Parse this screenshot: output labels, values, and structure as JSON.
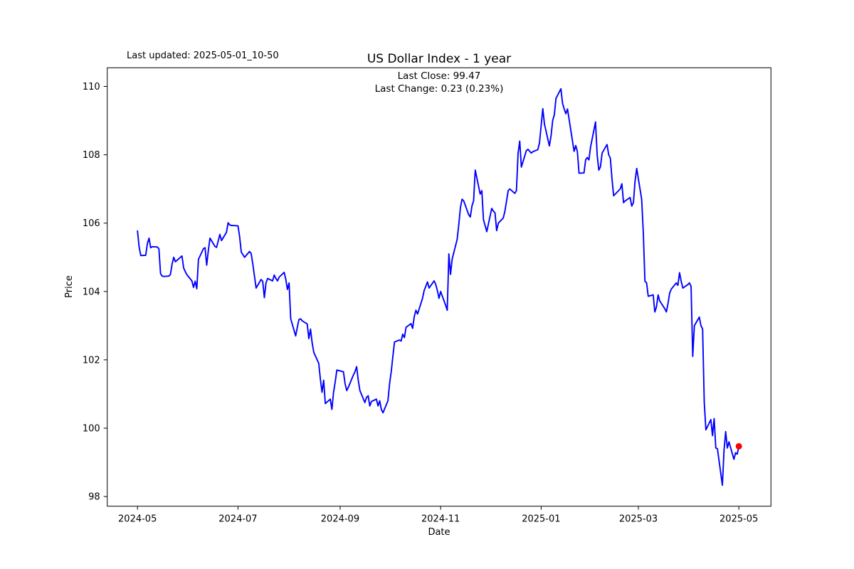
{
  "header": {
    "last_updated": "Last updated: 2025-05-01_10-50"
  },
  "chart_data": {
    "type": "line",
    "title": "US Dollar Index - 1 year",
    "subtitle_line1": "Last Close: 99.47",
    "subtitle_line2": "Last Change: 0.23 (0.23%)",
    "xlabel": "Date",
    "ylabel": "Price",
    "ylim": [
      97.72,
      110.55
    ],
    "x_start_date": "2024-05-01",
    "x_end_date": "2025-05-01",
    "grid": false,
    "legend": "none",
    "line_color": "#0000ff",
    "marker_color": "#ff0000",
    "axis_color": "#000000",
    "background_color": "#ffffff",
    "y_ticks": [
      98,
      100,
      102,
      104,
      106,
      108,
      110
    ],
    "x_ticks": [
      {
        "label": "2024-05",
        "date": "2024-05-01"
      },
      {
        "label": "2024-07",
        "date": "2024-07-01"
      },
      {
        "label": "2024-09",
        "date": "2024-09-01"
      },
      {
        "label": "2024-11",
        "date": "2024-11-01"
      },
      {
        "label": "2025-01",
        "date": "2025-01-01"
      },
      {
        "label": "2025-03",
        "date": "2025-03-01"
      },
      {
        "label": "2025-05",
        "date": "2025-05-01"
      }
    ],
    "last_point": {
      "date": "2025-05-01",
      "price": 99.47
    },
    "series": [
      {
        "name": "US Dollar Index",
        "points": [
          [
            "2024-05-01",
            105.77
          ],
          [
            "2024-05-02",
            105.3
          ],
          [
            "2024-05-03",
            105.05
          ],
          [
            "2024-05-06",
            105.06
          ],
          [
            "2024-05-07",
            105.4
          ],
          [
            "2024-05-08",
            105.56
          ],
          [
            "2024-05-09",
            105.28
          ],
          [
            "2024-05-10",
            105.31
          ],
          [
            "2024-05-13",
            105.3
          ],
          [
            "2024-05-14",
            105.25
          ],
          [
            "2024-05-15",
            104.52
          ],
          [
            "2024-05-16",
            104.45
          ],
          [
            "2024-05-17",
            104.44
          ],
          [
            "2024-05-20",
            104.45
          ],
          [
            "2024-05-21",
            104.5
          ],
          [
            "2024-05-22",
            104.8
          ],
          [
            "2024-05-23",
            105.0
          ],
          [
            "2024-05-24",
            104.87
          ],
          [
            "2024-05-28",
            105.04
          ],
          [
            "2024-05-29",
            104.69
          ],
          [
            "2024-05-30",
            104.58
          ],
          [
            "2024-05-31",
            104.49
          ],
          [
            "2024-06-03",
            104.31
          ],
          [
            "2024-06-04",
            104.12
          ],
          [
            "2024-06-05",
            104.3
          ],
          [
            "2024-06-06",
            104.08
          ],
          [
            "2024-06-07",
            104.94
          ],
          [
            "2024-06-10",
            105.25
          ],
          [
            "2024-06-11",
            105.28
          ],
          [
            "2024-06-12",
            104.77
          ],
          [
            "2024-06-13",
            105.2
          ],
          [
            "2024-06-14",
            105.56
          ],
          [
            "2024-06-17",
            105.32
          ],
          [
            "2024-06-18",
            105.29
          ],
          [
            "2024-06-20",
            105.67
          ],
          [
            "2024-06-21",
            105.49
          ],
          [
            "2024-06-24",
            105.73
          ],
          [
            "2024-06-25",
            106.01
          ],
          [
            "2024-06-26",
            105.95
          ],
          [
            "2024-06-27",
            105.93
          ],
          [
            "2024-06-28",
            105.93
          ],
          [
            "2024-07-01",
            105.92
          ],
          [
            "2024-07-02",
            105.6
          ],
          [
            "2024-07-03",
            105.15
          ],
          [
            "2024-07-05",
            105.0
          ],
          [
            "2024-07-08",
            105.17
          ],
          [
            "2024-07-09",
            105.11
          ],
          [
            "2024-07-10",
            104.8
          ],
          [
            "2024-07-11",
            104.45
          ],
          [
            "2024-07-12",
            104.1
          ],
          [
            "2024-07-15",
            104.35
          ],
          [
            "2024-07-16",
            104.3
          ],
          [
            "2024-07-17",
            103.82
          ],
          [
            "2024-07-18",
            104.25
          ],
          [
            "2024-07-19",
            104.38
          ],
          [
            "2024-07-22",
            104.31
          ],
          [
            "2024-07-23",
            104.48
          ],
          [
            "2024-07-24",
            104.38
          ],
          [
            "2024-07-25",
            104.31
          ],
          [
            "2024-07-26",
            104.42
          ],
          [
            "2024-07-29",
            104.56
          ],
          [
            "2024-07-30",
            104.36
          ],
          [
            "2024-07-31",
            104.06
          ],
          [
            "2024-08-01",
            104.25
          ],
          [
            "2024-08-02",
            103.2
          ],
          [
            "2024-08-05",
            102.7
          ],
          [
            "2024-08-06",
            102.95
          ],
          [
            "2024-08-07",
            103.18
          ],
          [
            "2024-08-08",
            103.2
          ],
          [
            "2024-08-09",
            103.14
          ],
          [
            "2024-08-12",
            103.05
          ],
          [
            "2024-08-13",
            102.62
          ],
          [
            "2024-08-14",
            102.9
          ],
          [
            "2024-08-15",
            102.5
          ],
          [
            "2024-08-16",
            102.22
          ],
          [
            "2024-08-19",
            101.9
          ],
          [
            "2024-08-20",
            101.44
          ],
          [
            "2024-08-21",
            101.05
          ],
          [
            "2024-08-22",
            101.4
          ],
          [
            "2024-08-23",
            100.72
          ],
          [
            "2024-08-26",
            100.85
          ],
          [
            "2024-08-27",
            100.55
          ],
          [
            "2024-08-28",
            101.05
          ],
          [
            "2024-08-29",
            101.35
          ],
          [
            "2024-08-30",
            101.7
          ],
          [
            "2024-09-03",
            101.65
          ],
          [
            "2024-09-04",
            101.3
          ],
          [
            "2024-09-05",
            101.1
          ],
          [
            "2024-09-06",
            101.2
          ],
          [
            "2024-09-09",
            101.55
          ],
          [
            "2024-09-10",
            101.65
          ],
          [
            "2024-09-11",
            101.8
          ],
          [
            "2024-09-12",
            101.4
          ],
          [
            "2024-09-13",
            101.1
          ],
          [
            "2024-09-16",
            100.75
          ],
          [
            "2024-09-17",
            100.9
          ],
          [
            "2024-09-18",
            100.95
          ],
          [
            "2024-09-19",
            100.65
          ],
          [
            "2024-09-20",
            100.78
          ],
          [
            "2024-09-23",
            100.85
          ],
          [
            "2024-09-24",
            100.65
          ],
          [
            "2024-09-25",
            100.8
          ],
          [
            "2024-09-26",
            100.55
          ],
          [
            "2024-09-27",
            100.45
          ],
          [
            "2024-09-30",
            100.8
          ],
          [
            "2024-10-01",
            101.3
          ],
          [
            "2024-10-02",
            101.65
          ],
          [
            "2024-10-03",
            102.1
          ],
          [
            "2024-10-04",
            102.52
          ],
          [
            "2024-10-07",
            102.58
          ],
          [
            "2024-10-08",
            102.55
          ],
          [
            "2024-10-09",
            102.75
          ],
          [
            "2024-10-10",
            102.65
          ],
          [
            "2024-10-11",
            102.95
          ],
          [
            "2024-10-14",
            103.06
          ],
          [
            "2024-10-15",
            102.92
          ],
          [
            "2024-10-16",
            103.27
          ],
          [
            "2024-10-17",
            103.45
          ],
          [
            "2024-10-18",
            103.34
          ],
          [
            "2024-10-21",
            103.8
          ],
          [
            "2024-10-22",
            104.03
          ],
          [
            "2024-10-23",
            104.15
          ],
          [
            "2024-10-24",
            104.28
          ],
          [
            "2024-10-25",
            104.1
          ],
          [
            "2024-10-28",
            104.31
          ],
          [
            "2024-10-29",
            104.21
          ],
          [
            "2024-10-30",
            104.03
          ],
          [
            "2024-10-31",
            103.8
          ],
          [
            "2024-11-01",
            104.0
          ],
          [
            "2024-11-04",
            103.6
          ],
          [
            "2024-11-05",
            103.45
          ],
          [
            "2024-11-06",
            105.1
          ],
          [
            "2024-11-07",
            104.5
          ],
          [
            "2024-11-08",
            104.95
          ],
          [
            "2024-11-11",
            105.52
          ],
          [
            "2024-11-12",
            105.95
          ],
          [
            "2024-11-13",
            106.45
          ],
          [
            "2024-11-14",
            106.7
          ],
          [
            "2024-11-15",
            106.65
          ],
          [
            "2024-11-18",
            106.25
          ],
          [
            "2024-11-19",
            106.18
          ],
          [
            "2024-11-20",
            106.5
          ],
          [
            "2024-11-21",
            106.65
          ],
          [
            "2024-11-22",
            107.55
          ],
          [
            "2024-11-25",
            106.85
          ],
          [
            "2024-11-26",
            106.95
          ],
          [
            "2024-11-27",
            106.1
          ],
          [
            "2024-11-29",
            105.75
          ],
          [
            "2024-12-02",
            106.43
          ],
          [
            "2024-12-03",
            106.35
          ],
          [
            "2024-12-04",
            106.3
          ],
          [
            "2024-12-05",
            105.78
          ],
          [
            "2024-12-06",
            106.0
          ],
          [
            "2024-12-09",
            106.15
          ],
          [
            "2024-12-10",
            106.35
          ],
          [
            "2024-12-11",
            106.65
          ],
          [
            "2024-12-12",
            106.95
          ],
          [
            "2024-12-13",
            107.0
          ],
          [
            "2024-12-16",
            106.87
          ],
          [
            "2024-12-17",
            106.95
          ],
          [
            "2024-12-18",
            108.05
          ],
          [
            "2024-12-19",
            108.4
          ],
          [
            "2024-12-20",
            107.64
          ],
          [
            "2024-12-23",
            108.12
          ],
          [
            "2024-12-24",
            108.16
          ],
          [
            "2024-12-26",
            108.05
          ],
          [
            "2024-12-27",
            108.09
          ],
          [
            "2024-12-30",
            108.15
          ],
          [
            "2024-12-31",
            108.35
          ],
          [
            "2025-01-02",
            109.35
          ],
          [
            "2025-01-03",
            108.9
          ],
          [
            "2025-01-06",
            108.26
          ],
          [
            "2025-01-07",
            108.55
          ],
          [
            "2025-01-08",
            109.0
          ],
          [
            "2025-01-09",
            109.17
          ],
          [
            "2025-01-10",
            109.65
          ],
          [
            "2025-01-13",
            109.93
          ],
          [
            "2025-01-14",
            109.5
          ],
          [
            "2025-01-15",
            109.34
          ],
          [
            "2025-01-16",
            109.2
          ],
          [
            "2025-01-17",
            109.34
          ],
          [
            "2025-01-21",
            108.1
          ],
          [
            "2025-01-22",
            108.27
          ],
          [
            "2025-01-23",
            108.09
          ],
          [
            "2025-01-24",
            107.46
          ],
          [
            "2025-01-27",
            107.47
          ],
          [
            "2025-01-28",
            107.85
          ],
          [
            "2025-01-29",
            107.92
          ],
          [
            "2025-01-30",
            107.85
          ],
          [
            "2025-01-31",
            108.23
          ],
          [
            "2025-02-03",
            108.96
          ],
          [
            "2025-02-04",
            108.0
          ],
          [
            "2025-02-05",
            107.55
          ],
          [
            "2025-02-06",
            107.65
          ],
          [
            "2025-02-07",
            108.05
          ],
          [
            "2025-02-10",
            108.3
          ],
          [
            "2025-02-11",
            108.0
          ],
          [
            "2025-02-12",
            107.9
          ],
          [
            "2025-02-13",
            107.3
          ],
          [
            "2025-02-14",
            106.8
          ],
          [
            "2025-02-18",
            107.0
          ],
          [
            "2025-02-19",
            107.15
          ],
          [
            "2025-02-20",
            106.6
          ],
          [
            "2025-02-21",
            106.65
          ],
          [
            "2025-02-24",
            106.75
          ],
          [
            "2025-02-25",
            106.5
          ],
          [
            "2025-02-26",
            106.6
          ],
          [
            "2025-02-27",
            107.23
          ],
          [
            "2025-02-28",
            107.6
          ],
          [
            "2025-03-03",
            106.7
          ],
          [
            "2025-03-04",
            105.73
          ],
          [
            "2025-03-05",
            104.3
          ],
          [
            "2025-03-06",
            104.25
          ],
          [
            "2025-03-07",
            103.86
          ],
          [
            "2025-03-10",
            103.9
          ],
          [
            "2025-03-11",
            103.4
          ],
          [
            "2025-03-12",
            103.55
          ],
          [
            "2025-03-13",
            103.9
          ],
          [
            "2025-03-14",
            103.72
          ],
          [
            "2025-03-17",
            103.5
          ],
          [
            "2025-03-18",
            103.4
          ],
          [
            "2025-03-19",
            103.65
          ],
          [
            "2025-03-20",
            103.95
          ],
          [
            "2025-03-21",
            104.07
          ],
          [
            "2025-03-24",
            104.25
          ],
          [
            "2025-03-25",
            104.18
          ],
          [
            "2025-03-26",
            104.55
          ],
          [
            "2025-03-27",
            104.3
          ],
          [
            "2025-03-28",
            104.1
          ],
          [
            "2025-03-31",
            104.2
          ],
          [
            "2025-04-01",
            104.25
          ],
          [
            "2025-04-02",
            104.15
          ],
          [
            "2025-04-03",
            102.1
          ],
          [
            "2025-04-04",
            103.0
          ],
          [
            "2025-04-07",
            103.25
          ],
          [
            "2025-04-08",
            103.0
          ],
          [
            "2025-04-09",
            102.9
          ],
          [
            "2025-04-10",
            100.75
          ],
          [
            "2025-04-11",
            99.95
          ],
          [
            "2025-04-14",
            100.25
          ],
          [
            "2025-04-15",
            99.78
          ],
          [
            "2025-04-16",
            100.28
          ],
          [
            "2025-04-17",
            99.42
          ],
          [
            "2025-04-18",
            99.4
          ],
          [
            "2025-04-21",
            98.33
          ],
          [
            "2025-04-22",
            99.35
          ],
          [
            "2025-04-23",
            99.9
          ],
          [
            "2025-04-24",
            99.42
          ],
          [
            "2025-04-25",
            99.6
          ],
          [
            "2025-04-28",
            99.09
          ],
          [
            "2025-04-29",
            99.28
          ],
          [
            "2025-04-30",
            99.24
          ],
          [
            "2025-05-01",
            99.47
          ]
        ]
      }
    ]
  }
}
